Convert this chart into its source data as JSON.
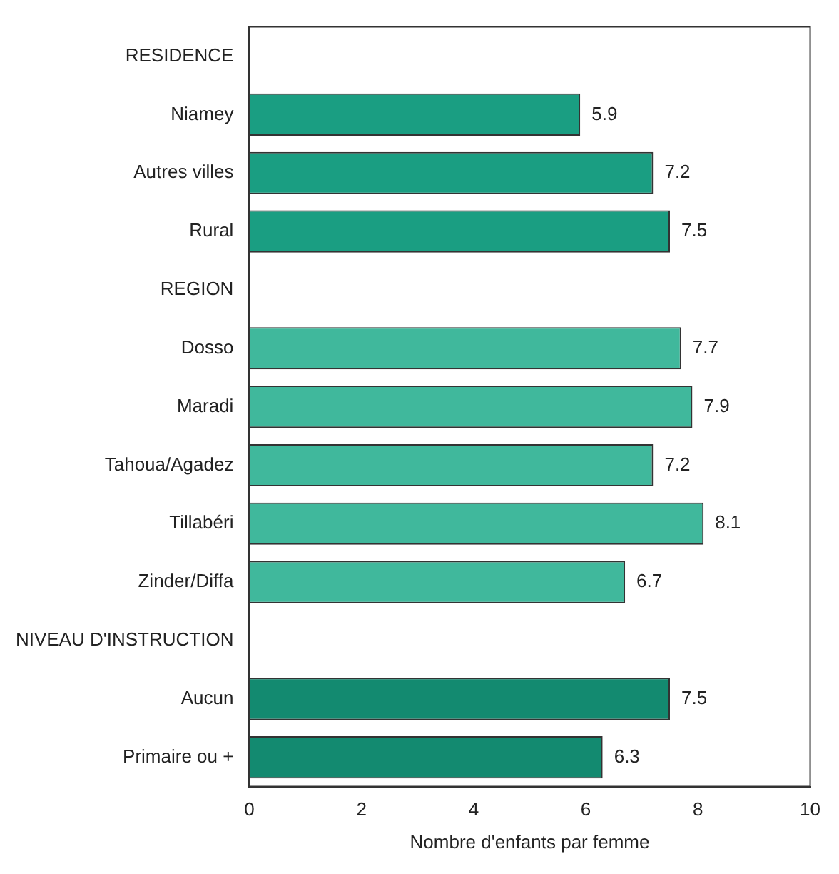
{
  "chart_data": {
    "type": "bar",
    "orientation": "horizontal",
    "xlabel": "Nombre d'enfants par femme",
    "categories": [
      "RESIDENCE",
      "Niamey",
      "Autres villes",
      "Rural",
      "REGION",
      "Dosso",
      "Maradi",
      "Tahoua/Agadez",
      "Tillabéri",
      "Zinder/Diffa",
      "NIVEAU D'INSTRUCTION",
      "Aucun",
      "Primaire ou +"
    ],
    "values": [
      null,
      5.9,
      7.2,
      7.5,
      null,
      7.7,
      7.9,
      7.2,
      8.1,
      6.7,
      null,
      7.5,
      6.3
    ],
    "colors": [
      null,
      "#1a9e82",
      "#1a9e82",
      "#1a9e82",
      null,
      "#40b89c",
      "#40b89c",
      "#40b89c",
      "#40b89c",
      "#40b89c",
      null,
      "#138a70",
      "#138a70"
    ],
    "xlim": [
      0,
      10
    ],
    "xticks": [
      0,
      2,
      4,
      6,
      8,
      10
    ],
    "grid": false,
    "legend": false,
    "data_labels": true
  }
}
